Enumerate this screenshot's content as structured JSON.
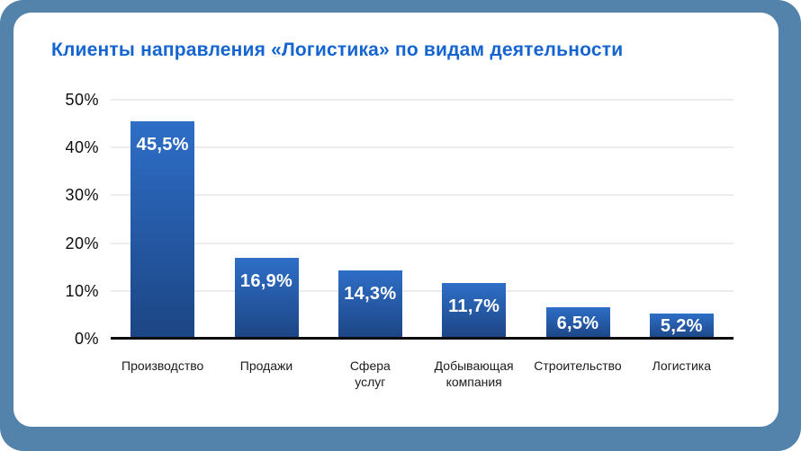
{
  "page": {
    "frame_background": "#5383ab",
    "card_background": "#ffffff"
  },
  "chart_data": {
    "type": "bar",
    "title": "Клиенты направления «Логистика» по видам деятельности",
    "title_color": "#1565d1",
    "categories": [
      "Производство",
      "Продажи",
      "Сфера\nуслуг",
      "Добывающая\nкомпания",
      "Строительство",
      "Логистика"
    ],
    "values": [
      45.5,
      16.9,
      14.3,
      11.7,
      6.5,
      5.2
    ],
    "value_labels": [
      "45,5%",
      "16,9%",
      "14,3%",
      "11,7%",
      "6,5%",
      "5,2%"
    ],
    "y_tick_values": [
      50,
      40,
      30,
      20,
      10,
      0
    ],
    "y_tick_labels": [
      "50%",
      "40%",
      "30%",
      "20%",
      "10%",
      "0%"
    ],
    "ylim": [
      0,
      50
    ],
    "xlabel": "",
    "ylabel": "",
    "grid": true,
    "legend": "none",
    "gridline_color": "#ececec",
    "axis_color": "#0c0c0c",
    "bar_gradient_top": "#2e6ec7",
    "bar_gradient_bottom": "#1c4584",
    "value_label_color": "#ffffff"
  }
}
